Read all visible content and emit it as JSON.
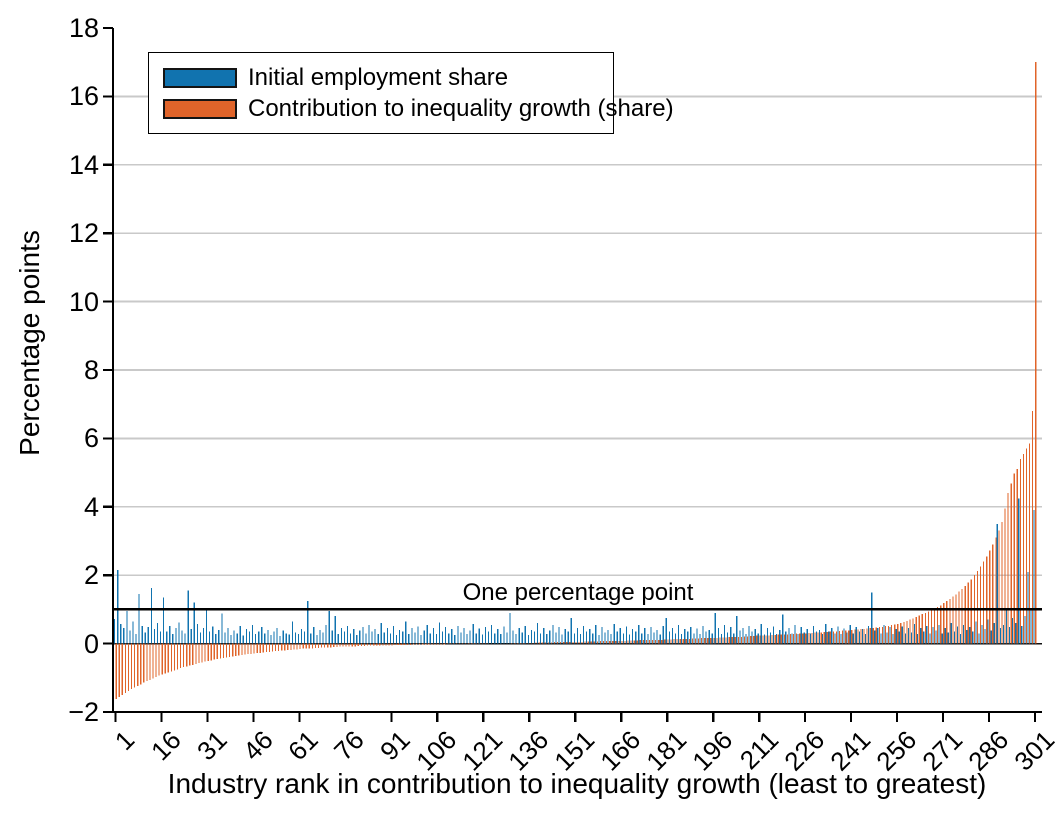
{
  "chart_data": {
    "type": "bar",
    "title": "",
    "xlabel": "Industry rank in contribution to inequality growth (least to greatest)",
    "ylabel": "Percentage points",
    "ylim": [
      -2,
      18
    ],
    "x_range": [
      1,
      301
    ],
    "grid": "horizontal",
    "legend_position": "top-left-inside",
    "y_ticks": [
      18,
      16,
      14,
      12,
      10,
      8,
      6,
      4,
      2,
      0,
      -2
    ],
    "y_tick_labels": [
      "18",
      "16",
      "14",
      "12",
      "10",
      "8",
      "6",
      "4",
      "2",
      "0",
      "−2"
    ],
    "x_ticks": [
      1,
      16,
      31,
      46,
      61,
      76,
      91,
      106,
      121,
      136,
      151,
      166,
      181,
      196,
      211,
      226,
      241,
      256,
      271,
      286,
      301
    ],
    "x_tick_labels": [
      "1",
      "16",
      "31",
      "46",
      "61",
      "76",
      "91",
      "106",
      "121",
      "136",
      "151",
      "166",
      "181",
      "196",
      "211",
      "226",
      "241",
      "256",
      "271",
      "286",
      "301"
    ],
    "reference_line": {
      "y": 1,
      "label": "One percentage point"
    },
    "colors": {
      "blue": "#1173af",
      "orange": "#e0642a",
      "grid": "#c9c9c9",
      "axis": "#000000"
    },
    "series": [
      {
        "name": "Initial employment share",
        "color": "#1173af",
        "values": [
          0.72,
          2.15,
          0.58,
          0.45,
          0.95,
          0.38,
          0.65,
          0.28,
          1.45,
          0.52,
          0.33,
          0.48,
          1.63,
          0.42,
          0.6,
          0.35,
          1.35,
          0.35,
          0.52,
          0.28,
          0.45,
          0.62,
          0.38,
          0.3,
          1.55,
          0.42,
          1.2,
          0.57,
          0.33,
          0.45,
          0.97,
          0.35,
          0.5,
          0.28,
          0.4,
          0.88,
          0.32,
          0.45,
          0.25,
          0.38,
          0.3,
          0.52,
          0.24,
          0.42,
          0.35,
          0.55,
          0.28,
          0.36,
          0.48,
          0.3,
          0.4,
          0.25,
          0.35,
          0.45,
          0.22,
          0.38,
          0.3,
          0.26,
          0.65,
          0.33,
          0.28,
          0.42,
          0.35,
          1.24,
          0.3,
          0.48,
          0.25,
          0.4,
          0.32,
          0.55,
          0.95,
          0.38,
          0.8,
          0.28,
          0.45,
          0.35,
          0.52,
          0.3,
          0.42,
          0.25,
          0.38,
          0.48,
          0.3,
          0.55,
          0.35,
          0.42,
          0.28,
          0.6,
          0.33,
          0.45,
          0.3,
          0.52,
          0.25,
          0.4,
          0.35,
          0.65,
          0.28,
          0.45,
          0.32,
          0.5,
          0.25,
          0.38,
          0.55,
          0.3,
          0.45,
          0.28,
          0.62,
          0.35,
          0.48,
          0.3,
          0.42,
          0.25,
          0.52,
          0.33,
          0.45,
          0.28,
          0.38,
          0.58,
          0.3,
          0.44,
          0.26,
          0.48,
          0.35,
          0.55,
          0.3,
          0.42,
          0.28,
          0.5,
          0.33,
          0.9,
          0.38,
          0.28,
          0.45,
          0.32,
          0.52,
          0.25,
          0.4,
          0.35,
          0.6,
          0.3,
          0.45,
          0.28,
          0.38,
          0.55,
          0.32,
          0.48,
          0.26,
          0.42,
          0.35,
          0.75,
          0.3,
          0.45,
          0.28,
          0.52,
          0.36,
          0.42,
          0.3,
          0.55,
          0.25,
          0.48,
          0.33,
          0.4,
          0.28,
          0.58,
          0.35,
          0.45,
          0.3,
          0.5,
          0.27,
          0.42,
          0.36,
          0.55,
          0.3,
          0.45,
          0.28,
          0.48,
          0.33,
          0.4,
          0.26,
          0.52,
          0.75,
          0.35,
          0.45,
          0.3,
          0.55,
          0.28,
          0.42,
          0.36,
          0.48,
          0.3,
          0.44,
          0.28,
          0.52,
          0.35,
          0.4,
          0.3,
          0.9,
          0.45,
          0.28,
          0.55,
          0.33,
          0.48,
          0.3,
          0.8,
          0.38,
          0.45,
          0.28,
          0.52,
          0.35,
          0.42,
          0.3,
          0.58,
          0.26,
          0.45,
          0.33,
          0.5,
          0.28,
          0.4,
          0.85,
          0.35,
          0.45,
          0.3,
          0.55,
          0.28,
          0.48,
          0.33,
          0.42,
          0.3,
          0.52,
          0.36,
          0.4,
          0.28,
          0.58,
          0.35,
          0.45,
          0.3,
          0.5,
          0.28,
          0.44,
          0.33,
          0.55,
          0.3,
          0.48,
          0.35,
          0.42,
          0.28,
          0.52,
          1.5,
          0.38,
          0.45,
          0.3,
          0.55,
          0.33,
          0.48,
          0.28,
          0.42,
          0.36,
          0.5,
          0.3,
          0.45,
          0.33,
          0.58,
          0.28,
          0.45,
          0.35,
          0.52,
          0.3,
          0.48,
          0.38,
          0.55,
          0.3,
          0.45,
          0.33,
          0.6,
          0.35,
          0.5,
          0.28,
          0.55,
          0.4,
          0.48,
          0.35,
          0.65,
          0.3,
          0.55,
          0.42,
          0.7,
          0.38,
          0.6,
          3.5,
          0.45,
          0.55,
          1.0,
          0.48,
          0.75,
          0.6,
          4.25,
          0.52,
          0.8,
          2.1,
          1.0,
          3.9
        ]
      },
      {
        "name": "Contribution to inequality growth (share)",
        "color": "#e0642a",
        "values": [
          -1.62,
          -1.56,
          -1.5,
          -1.44,
          -1.39,
          -1.33,
          -1.28,
          -1.24,
          -1.19,
          -1.14,
          -1.1,
          -1.06,
          -1.02,
          -0.98,
          -0.94,
          -0.91,
          -0.87,
          -0.84,
          -0.81,
          -0.78,
          -0.75,
          -0.72,
          -0.69,
          -0.67,
          -0.64,
          -0.62,
          -0.59,
          -0.57,
          -0.55,
          -0.53,
          -0.51,
          -0.49,
          -0.47,
          -0.45,
          -0.44,
          -0.42,
          -0.4,
          -0.39,
          -0.37,
          -0.36,
          -0.35,
          -0.33,
          -0.32,
          -0.31,
          -0.3,
          -0.29,
          -0.28,
          -0.27,
          -0.26,
          -0.25,
          -0.24,
          -0.23,
          -0.22,
          -0.21,
          -0.2,
          -0.2,
          -0.19,
          -0.18,
          -0.17,
          -0.17,
          -0.16,
          -0.15,
          -0.15,
          -0.14,
          -0.14,
          -0.13,
          -0.13,
          -0.12,
          -0.12,
          -0.11,
          -0.11,
          -0.1,
          -0.1,
          -0.09,
          -0.09,
          -0.09,
          -0.08,
          -0.08,
          -0.08,
          -0.07,
          -0.07,
          -0.07,
          -0.06,
          -0.06,
          -0.06,
          -0.06,
          -0.05,
          -0.05,
          -0.05,
          -0.05,
          -0.05,
          -0.04,
          -0.04,
          -0.04,
          -0.04,
          -0.04,
          -0.04,
          -0.03,
          -0.03,
          -0.03,
          -0.03,
          -0.03,
          -0.02,
          -0.02,
          -0.02,
          -0.02,
          -0.02,
          -0.02,
          -0.01,
          -0.01,
          -0.01,
          -0.01,
          -0.01,
          -0.01,
          -0.01,
          0.0,
          0.0,
          0.0,
          0.0,
          0.0,
          0.0,
          0.0,
          0.01,
          0.01,
          0.01,
          0.01,
          0.01,
          0.01,
          0.01,
          0.02,
          0.02,
          0.02,
          0.02,
          0.02,
          0.02,
          0.02,
          0.02,
          0.03,
          0.03,
          0.03,
          0.03,
          0.03,
          0.03,
          0.04,
          0.04,
          0.04,
          0.04,
          0.04,
          0.05,
          0.05,
          0.05,
          0.05,
          0.05,
          0.06,
          0.06,
          0.06,
          0.06,
          0.06,
          0.07,
          0.07,
          0.07,
          0.07,
          0.07,
          0.08,
          0.08,
          0.08,
          0.08,
          0.09,
          0.09,
          0.09,
          0.09,
          0.1,
          0.1,
          0.1,
          0.1,
          0.11,
          0.11,
          0.11,
          0.11,
          0.12,
          0.12,
          0.12,
          0.13,
          0.13,
          0.13,
          0.14,
          0.14,
          0.14,
          0.15,
          0.15,
          0.15,
          0.16,
          0.16,
          0.16,
          0.17,
          0.17,
          0.17,
          0.18,
          0.18,
          0.18,
          0.19,
          0.19,
          0.2,
          0.2,
          0.2,
          0.21,
          0.21,
          0.22,
          0.22,
          0.23,
          0.23,
          0.23,
          0.24,
          0.24,
          0.25,
          0.25,
          0.26,
          0.26,
          0.27,
          0.27,
          0.28,
          0.28,
          0.29,
          0.29,
          0.3,
          0.3,
          0.31,
          0.31,
          0.32,
          0.33,
          0.33,
          0.34,
          0.34,
          0.35,
          0.36,
          0.36,
          0.37,
          0.38,
          0.38,
          0.39,
          0.4,
          0.41,
          0.41,
          0.42,
          0.43,
          0.44,
          0.45,
          0.46,
          0.47,
          0.48,
          0.49,
          0.51,
          0.52,
          0.54,
          0.56,
          0.58,
          0.6,
          0.63,
          0.66,
          0.7,
          0.74,
          0.78,
          0.82,
          0.86,
          0.9,
          0.94,
          0.98,
          1.02,
          1.07,
          1.12,
          1.18,
          1.24,
          1.3,
          1.37,
          1.44,
          1.52,
          1.6,
          1.69,
          1.78,
          1.88,
          2.0,
          2.12,
          2.25,
          2.4,
          2.55,
          2.72,
          2.9,
          3.1,
          3.3,
          3.56,
          3.95,
          4.4,
          4.68,
          4.97,
          5.1,
          5.4,
          5.55,
          5.7,
          5.85,
          6.8,
          17.0
        ]
      }
    ]
  }
}
